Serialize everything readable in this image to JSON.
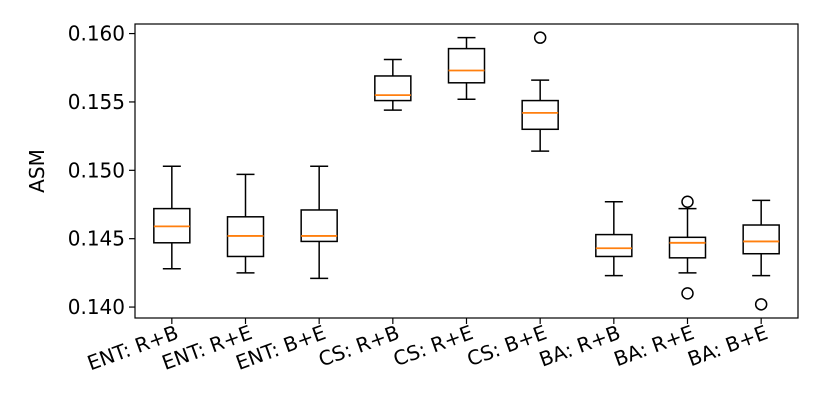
{
  "chart_data": {
    "type": "box",
    "title": "",
    "xlabel": "",
    "ylabel": "ASM",
    "ylim": [
      0.1392,
      0.1607
    ],
    "yticks": [
      "0.140",
      "0.145",
      "0.150",
      "0.155",
      "0.160"
    ],
    "ytick_values": [
      0.14,
      0.145,
      0.15,
      0.155,
      0.16
    ],
    "categories": [
      "ENT: R+B",
      "ENT: R+E",
      "ENT: B+E",
      "CS: R+B",
      "CS: R+E",
      "CS: B+E",
      "BA: R+B",
      "BA: R+E",
      "BA: B+E"
    ],
    "boxes": [
      {
        "whisker_low": 0.1428,
        "q1": 0.1447,
        "median": 0.1459,
        "q3": 0.1472,
        "whisker_high": 0.1503,
        "outliers": []
      },
      {
        "whisker_low": 0.1425,
        "q1": 0.1437,
        "median": 0.1452,
        "q3": 0.1466,
        "whisker_high": 0.1497,
        "outliers": []
      },
      {
        "whisker_low": 0.1421,
        "q1": 0.1448,
        "median": 0.1452,
        "q3": 0.1471,
        "whisker_high": 0.1503,
        "outliers": []
      },
      {
        "whisker_low": 0.1544,
        "q1": 0.1551,
        "median": 0.1555,
        "q3": 0.1569,
        "whisker_high": 0.1581,
        "outliers": []
      },
      {
        "whisker_low": 0.1552,
        "q1": 0.1564,
        "median": 0.1573,
        "q3": 0.1589,
        "whisker_high": 0.1597,
        "outliers": []
      },
      {
        "whisker_low": 0.1514,
        "q1": 0.153,
        "median": 0.1542,
        "q3": 0.1551,
        "whisker_high": 0.1566,
        "outliers": [
          0.1597
        ]
      },
      {
        "whisker_low": 0.1423,
        "q1": 0.1437,
        "median": 0.1443,
        "q3": 0.1453,
        "whisker_high": 0.1477,
        "outliers": []
      },
      {
        "whisker_low": 0.1425,
        "q1": 0.1436,
        "median": 0.1447,
        "q3": 0.1451,
        "whisker_high": 0.1472,
        "outliers": [
          0.1477,
          0.141
        ]
      },
      {
        "whisker_low": 0.1423,
        "q1": 0.1439,
        "median": 0.1448,
        "q3": 0.146,
        "whisker_high": 0.1478,
        "outliers": [
          0.1402
        ]
      }
    ],
    "grid": false,
    "colors": {
      "box": "#000000",
      "median": "#ff7f0e",
      "background": "#ffffff"
    }
  }
}
